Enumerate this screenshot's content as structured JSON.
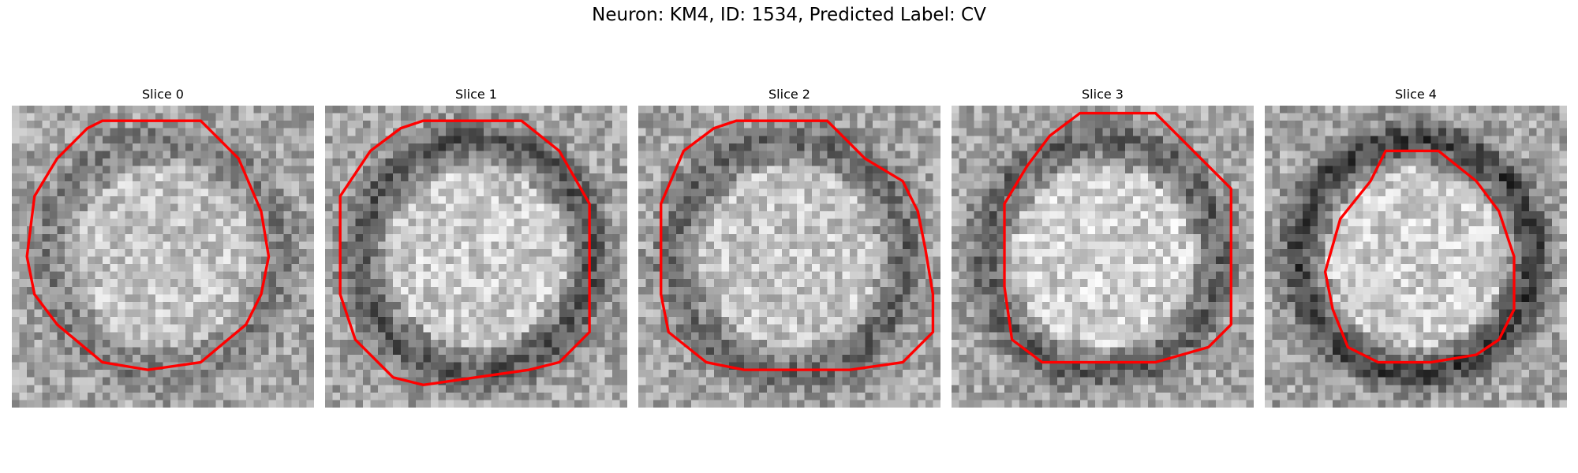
{
  "figure": {
    "title": "Neuron: KM4, ID: 1534, Predicted Label: CV",
    "contour_color": "#ff0000",
    "colormap": "gray",
    "slices": [
      {
        "label": "Slice 0",
        "contour": [
          [
            12,
            2
          ],
          [
            25,
            2
          ],
          [
            30,
            7
          ],
          [
            33,
            14
          ],
          [
            34,
            20
          ],
          [
            33,
            25
          ],
          [
            31,
            29
          ],
          [
            25,
            34
          ],
          [
            18,
            35
          ],
          [
            12,
            34
          ],
          [
            6,
            29
          ],
          [
            3,
            25
          ],
          [
            2,
            20
          ],
          [
            3,
            12
          ],
          [
            6,
            7
          ],
          [
            10,
            3
          ]
        ],
        "dark_ring": 0.35,
        "bright": 0.55
      },
      {
        "label": "Slice 1",
        "contour": [
          [
            13,
            2
          ],
          [
            26,
            2
          ],
          [
            31,
            6
          ],
          [
            35,
            13
          ],
          [
            35,
            30
          ],
          [
            31,
            34
          ],
          [
            27,
            35
          ],
          [
            20,
            36
          ],
          [
            13,
            37
          ],
          [
            9,
            36
          ],
          [
            4,
            31
          ],
          [
            2,
            25
          ],
          [
            2,
            12
          ],
          [
            6,
            6
          ],
          [
            10,
            3
          ]
        ],
        "dark_ring": 0.7,
        "bright": 0.7
      },
      {
        "label": "Slice 2",
        "contour": [
          [
            13,
            2
          ],
          [
            25,
            2
          ],
          [
            30,
            7
          ],
          [
            35,
            10
          ],
          [
            37,
            14
          ],
          [
            38,
            19
          ],
          [
            39,
            25
          ],
          [
            39,
            30
          ],
          [
            35,
            34
          ],
          [
            28,
            35
          ],
          [
            21,
            35
          ],
          [
            14,
            35
          ],
          [
            9,
            34
          ],
          [
            4,
            30
          ],
          [
            3,
            25
          ],
          [
            3,
            13
          ],
          [
            6,
            6
          ],
          [
            10,
            3
          ]
        ],
        "dark_ring": 0.55,
        "bright": 0.6
      },
      {
        "label": "Slice 3",
        "contour": [
          [
            17,
            1
          ],
          [
            27,
            1
          ],
          [
            32,
            6
          ],
          [
            37,
            11
          ],
          [
            37,
            29
          ],
          [
            34,
            32
          ],
          [
            27,
            34
          ],
          [
            20,
            34
          ],
          [
            12,
            34
          ],
          [
            8,
            31
          ],
          [
            7,
            24
          ],
          [
            7,
            13
          ],
          [
            10,
            8
          ],
          [
            13,
            4
          ]
        ],
        "dark_ring": 0.6,
        "bright": 0.8
      },
      {
        "label": "Slice 4",
        "contour": [
          [
            16,
            6
          ],
          [
            23,
            6
          ],
          [
            28,
            10
          ],
          [
            31,
            14
          ],
          [
            33,
            20
          ],
          [
            33,
            27
          ],
          [
            31,
            31
          ],
          [
            28,
            33
          ],
          [
            22,
            34
          ],
          [
            15,
            34
          ],
          [
            11,
            32
          ],
          [
            9,
            27
          ],
          [
            8,
            22
          ],
          [
            10,
            15
          ],
          [
            14,
            10
          ]
        ],
        "dark_ring": 0.9,
        "bright": 0.75
      }
    ]
  }
}
